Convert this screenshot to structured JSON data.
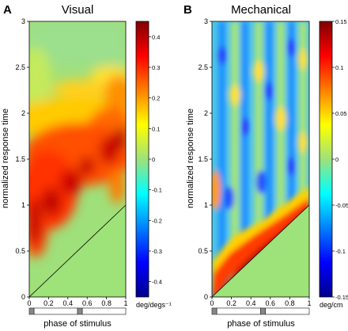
{
  "panels": [
    {
      "letter": "A",
      "title": "Visual",
      "xlabel": "phase of stimulus",
      "ylabel": "normalized response time",
      "colorbar_unit": "deg/degs⁻¹"
    },
    {
      "letter": "B",
      "title": "Mechanical",
      "xlabel": "phase of stimulus",
      "ylabel": "normalized response time",
      "colorbar_unit": "deg/cm"
    }
  ],
  "chart_data": [
    {
      "type": "heatmap",
      "title": "Visual",
      "xlabel": "phase of stimulus",
      "ylabel": "normalized response time",
      "xlim": [
        0,
        1
      ],
      "ylim": [
        0,
        3
      ],
      "x_ticks": [
        "0",
        "0.2",
        "0.4",
        "0.6",
        "0.8",
        "1"
      ],
      "y_ticks": [
        "0",
        "0.5",
        "1",
        "1.5",
        "2",
        "2.5",
        "3"
      ],
      "colorbar": {
        "range": [
          -0.45,
          0.45
        ],
        "ticks": [
          "0.4",
          "0.3",
          "0.2",
          "0.1",
          "0",
          "-0.1",
          "-0.2",
          "-0.3",
          "-0.4"
        ],
        "unit": "deg/degs⁻¹",
        "colormap": "jet"
      },
      "masked_region": "y < x (green)",
      "mask_color": "#9ee27a",
      "peaks": [
        {
          "x": 0.02,
          "y": 0.9,
          "value": 0.42
        },
        {
          "x": 0.15,
          "y": 0.95,
          "value": 0.35
        },
        {
          "x": 0.3,
          "y": 1.15,
          "value": 0.38
        },
        {
          "x": 0.5,
          "y": 1.3,
          "value": 0.32
        },
        {
          "x": 0.65,
          "y": 1.45,
          "value": 0.3
        },
        {
          "x": 0.8,
          "y": 1.35,
          "value": 0.35
        },
        {
          "x": 0.95,
          "y": 1.7,
          "value": 0.4
        },
        {
          "x": 0.8,
          "y": 2.0,
          "value": 0.18
        },
        {
          "x": 0.95,
          "y": 2.3,
          "value": 0.2
        }
      ],
      "stimulus_bar": [
        {
          "from": 0.0,
          "to": 0.05,
          "state": "dark"
        },
        {
          "from": 0.05,
          "to": 0.5,
          "state": "light"
        },
        {
          "from": 0.5,
          "to": 0.55,
          "state": "dark"
        },
        {
          "from": 0.55,
          "to": 1.0,
          "state": "light"
        }
      ]
    },
    {
      "type": "heatmap",
      "title": "Mechanical",
      "xlabel": "phase of stimulus",
      "ylabel": "normalized response time",
      "xlim": [
        0,
        1
      ],
      "ylim": [
        0,
        3
      ],
      "x_ticks": [
        "0",
        "0.2",
        "0.4",
        "0.6",
        "0.8",
        "1"
      ],
      "y_ticks": [
        "0",
        "0.5",
        "1",
        "1.5",
        "2",
        "2.5",
        "3"
      ],
      "colorbar": {
        "range": [
          -0.15,
          0.15
        ],
        "ticks": [
          "0.15",
          "0.1",
          "0.05",
          "0",
          "-0.05",
          "-0.1",
          "-0.15"
        ],
        "unit": "deg/cm",
        "colormap": "jet"
      },
      "masked_region": "y < x (green)",
      "mask_color": "#9ee27a",
      "peaks": [
        {
          "x": 0.3,
          "y": 0.45,
          "value": 0.14
        },
        {
          "x": 0.55,
          "y": 0.7,
          "value": 0.1
        },
        {
          "x": 0.8,
          "y": 0.95,
          "value": 0.12
        },
        {
          "x": 0.95,
          "y": 1.05,
          "value": 0.1
        }
      ],
      "stripe_columns_x": [
        0.1,
        0.3,
        0.5,
        0.7,
        0.9
      ],
      "stimulus_bar": [
        {
          "from": 0.0,
          "to": 0.05,
          "state": "dark"
        },
        {
          "from": 0.05,
          "to": 0.5,
          "state": "light"
        },
        {
          "from": 0.5,
          "to": 0.55,
          "state": "dark"
        },
        {
          "from": 0.55,
          "to": 1.0,
          "state": "light"
        }
      ]
    }
  ]
}
